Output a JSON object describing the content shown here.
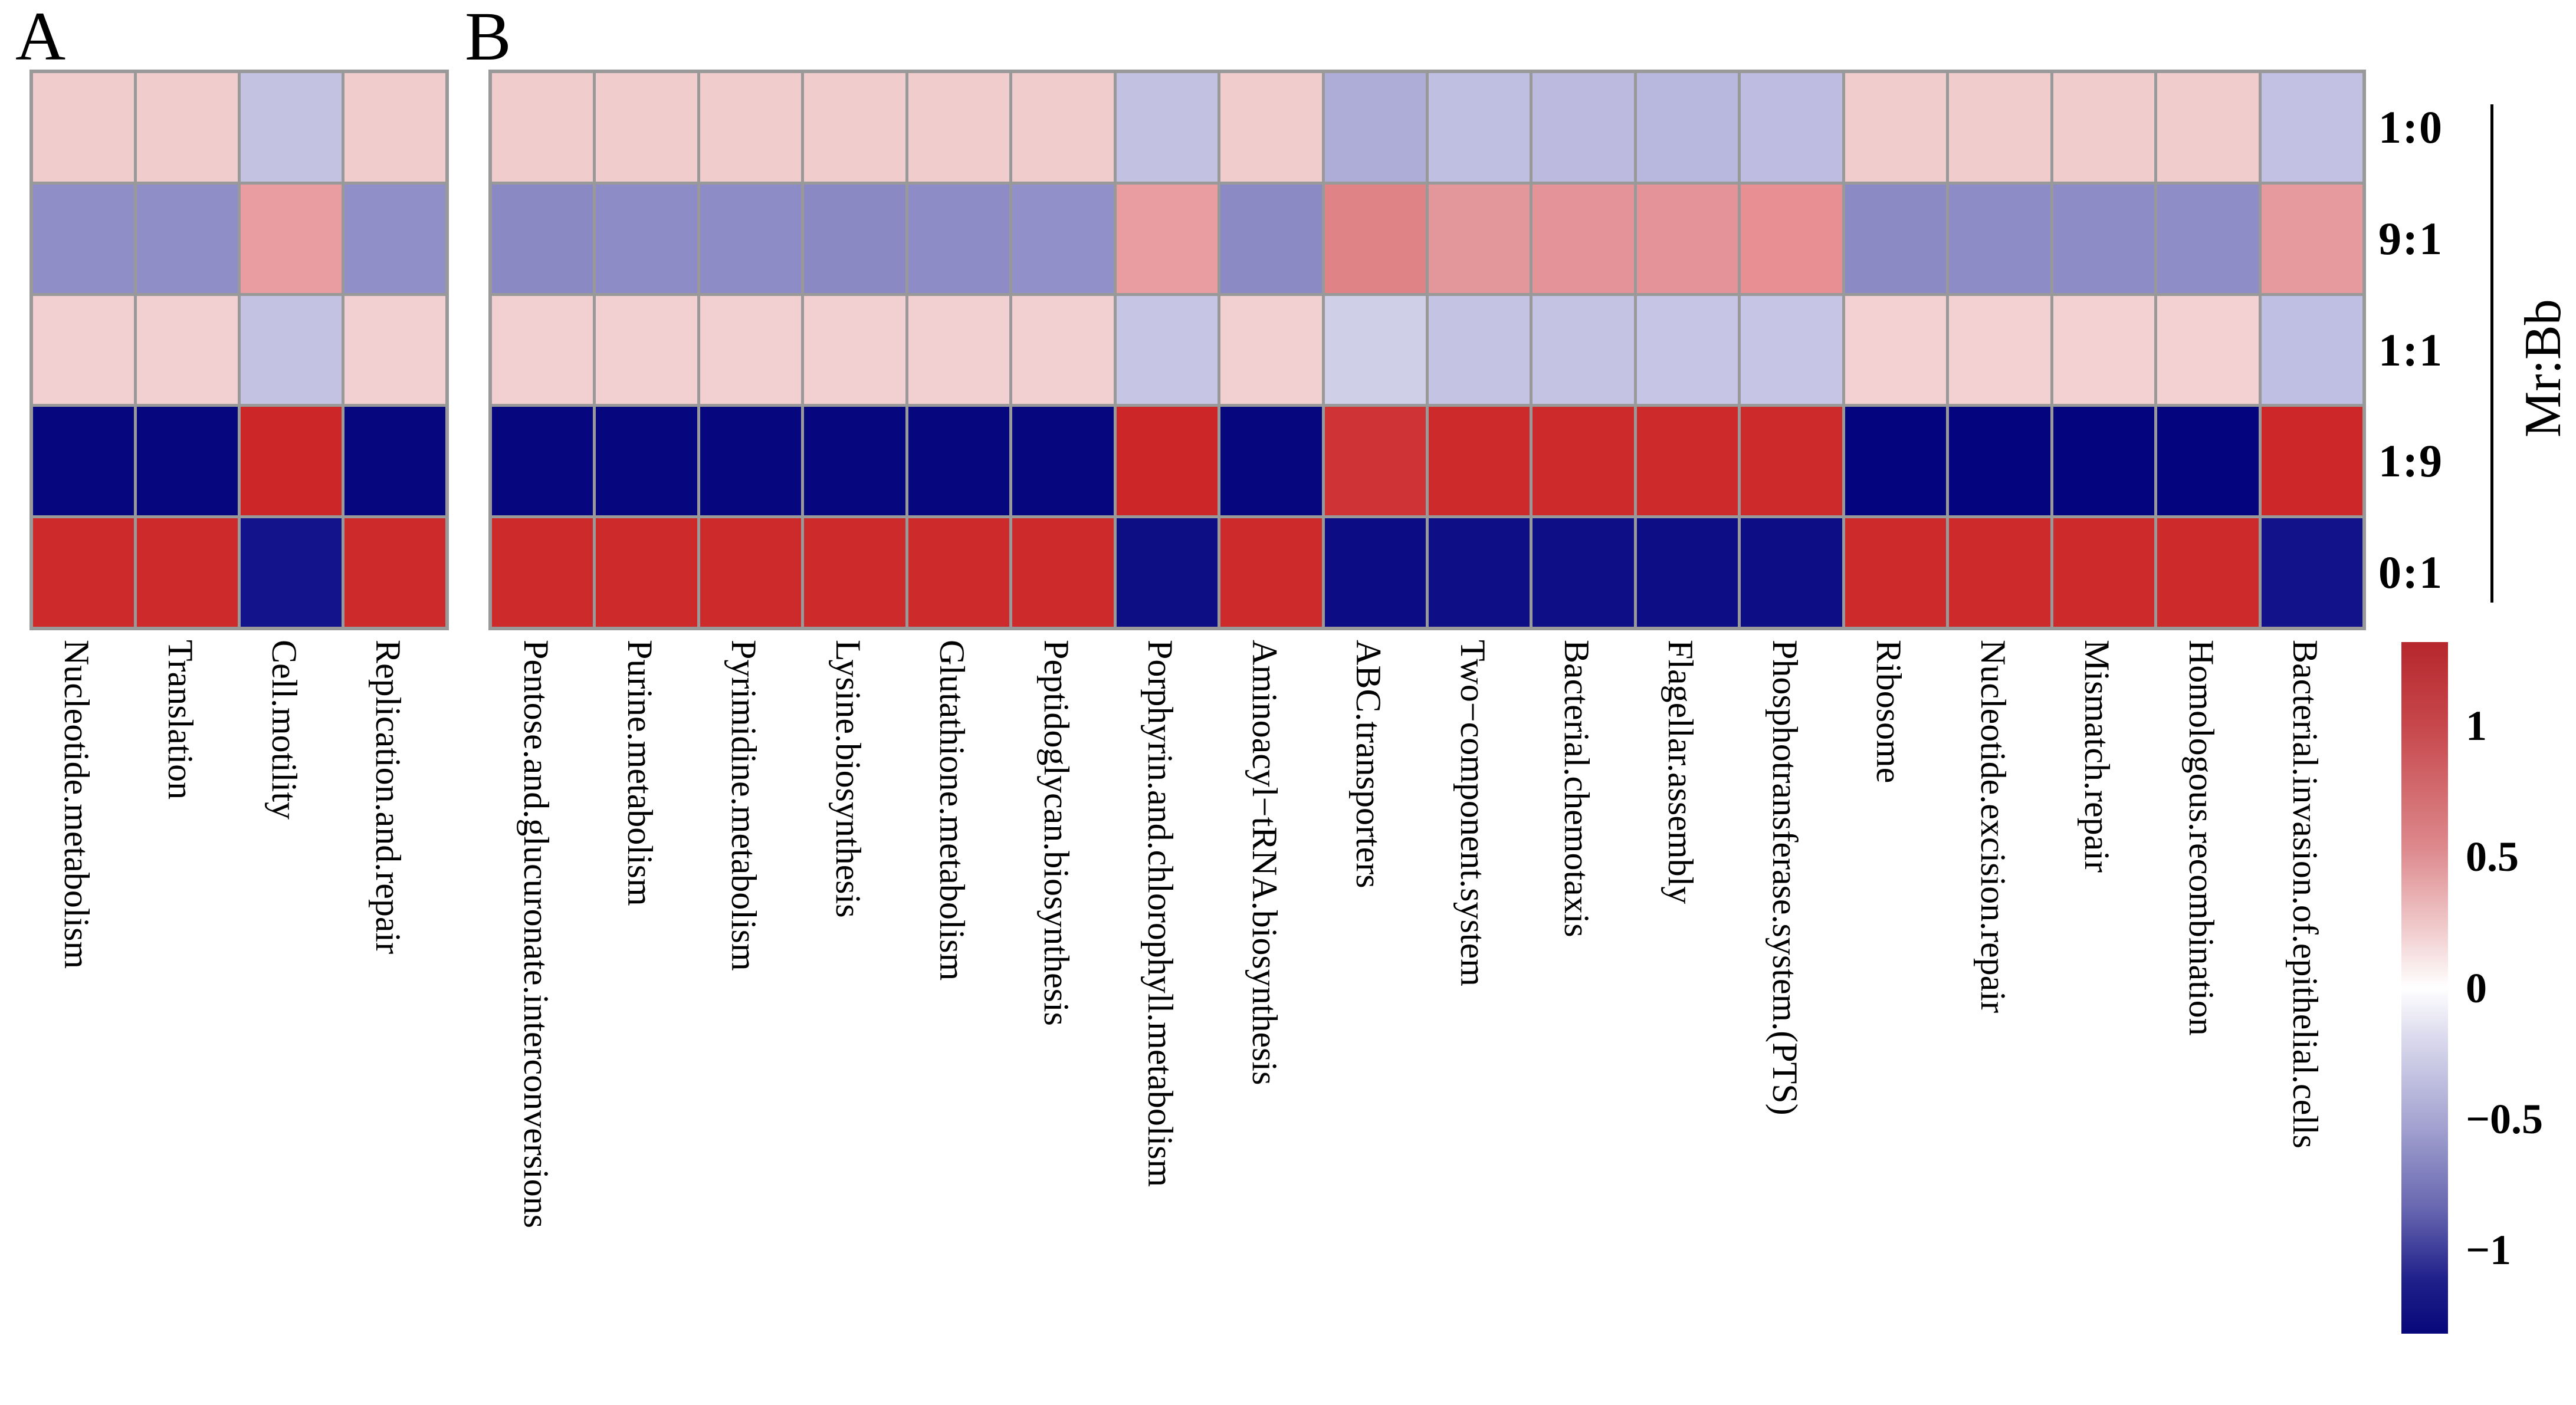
{
  "row_axis": {
    "title": "Mr:Bb",
    "labels": [
      "1:0",
      "9:1",
      "1:1",
      "1:9",
      "0:1"
    ]
  },
  "colorbar": {
    "ticks": [
      "1",
      "0.5",
      "0",
      "−0.5",
      "−1"
    ],
    "tick_values": [
      1,
      0.5,
      0,
      -0.5,
      -1
    ],
    "value_range": [
      -1.32,
      1.32
    ],
    "gradient_stops": [
      "#b6272c 0%",
      "#c6474b 12%",
      "#dd8a8e 30%",
      "#f3d4d5 43%",
      "#ffffff 50%",
      "#dcdbee 57%",
      "#a3a2d0 70%",
      "#6766b0 82%",
      "#21218b 92%",
      "#07077a 100%"
    ],
    "positive_color": "#b6272c",
    "zero_color": "#ffffff",
    "negative_color": "#07077a"
  },
  "grid_line_color": "#999999",
  "chart_data": [
    {
      "panel": "A",
      "type": "heatmap",
      "legend_position": "right",
      "columns": [
        "Nucleotide.metabolism",
        "Translation",
        "Cell.motility",
        "Replication.and.repair"
      ],
      "rows": [
        "1:0",
        "9:1",
        "1:1",
        "1:9",
        "0:1"
      ],
      "values": [
        [
          0.35,
          0.35,
          -0.38,
          0.35
        ],
        [
          -0.68,
          -0.68,
          0.6,
          -0.67
        ],
        [
          0.33,
          0.33,
          -0.38,
          0.33
        ],
        [
          -1.31,
          -1.31,
          1.3,
          -1.31
        ],
        [
          1.28,
          1.28,
          -1.23,
          1.28
        ]
      ],
      "cell_colors": [
        [
          "#f1cccd",
          "#f1cccd",
          "#c3c2e1",
          "#f1cccd"
        ],
        [
          "#8f8ec7",
          "#8f8ec7",
          "#e99da0",
          "#908fc8"
        ],
        [
          "#f2cfd0",
          "#f2cfd0",
          "#c3c2e3",
          "#f2cfd0"
        ],
        [
          "#06067f",
          "#06067f",
          "#cc2628",
          "#06067f"
        ],
        [
          "#cc2a2b",
          "#cc2a2b",
          "#13138c",
          "#cc2a2b"
        ]
      ]
    },
    {
      "panel": "B",
      "type": "heatmap",
      "legend_position": "right",
      "columns": [
        "Pentose.and.glucuronate.interconversions",
        "Purine.metabolism",
        "Pyrimidine.metabolism",
        "Lysine.biosynthesis",
        "Glutathione.metabolism",
        "Peptidoglycan.biosynthesis",
        "Porphyrin.and.chlorophyll.metabolism",
        "Aminoacyl−tRNA.biosynthesis",
        "ABC.transporters",
        "Two−component.system",
        "Bacterial.chemotaxis",
        "Flagellar.assembly",
        "Phosphotransferase.system.(PTS)",
        "Ribosome",
        "Nucleotide.excision.repair",
        "Mismatch.repair",
        "Homologous.recombination",
        "Bacterial.invasion.of.epithelial.cells"
      ],
      "rows": [
        "1:0",
        "9:1",
        "1:1",
        "1:9",
        "0:1"
      ],
      "values": [
        [
          0.35,
          0.35,
          0.35,
          0.35,
          0.35,
          0.35,
          -0.38,
          0.35,
          -0.52,
          -0.4,
          -0.42,
          -0.45,
          -0.41,
          0.35,
          0.35,
          0.35,
          0.35,
          -0.38
        ],
        [
          -0.72,
          -0.7,
          -0.7,
          -0.72,
          -0.7,
          -0.66,
          0.6,
          -0.71,
          0.78,
          0.64,
          0.66,
          0.66,
          0.7,
          -0.71,
          -0.7,
          -0.7,
          -0.69,
          0.62
        ],
        [
          0.33,
          0.33,
          0.33,
          0.33,
          0.33,
          0.33,
          -0.35,
          0.33,
          -0.28,
          -0.37,
          -0.37,
          -0.35,
          -0.35,
          0.3,
          0.3,
          0.3,
          0.3,
          -0.4
        ],
        [
          -1.31,
          -1.31,
          -1.31,
          -1.31,
          -1.31,
          -1.31,
          1.3,
          -1.31,
          1.2,
          1.27,
          1.27,
          1.27,
          1.27,
          -1.32,
          -1.32,
          -1.32,
          -1.32,
          1.28
        ],
        [
          1.28,
          1.28,
          1.28,
          1.28,
          1.28,
          1.28,
          -1.27,
          1.28,
          -1.27,
          -1.26,
          -1.26,
          -1.27,
          -1.27,
          1.28,
          1.28,
          1.28,
          1.28,
          -1.24
        ]
      ],
      "cell_colors": [
        [
          "#f1cccd",
          "#f1cccd",
          "#f1cccd",
          "#f1cccd",
          "#f1cccd",
          "#f1cccd",
          "#c2c1e1",
          "#f1cccd",
          "#aeadd8",
          "#bfbfe2",
          "#bcbbdf",
          "#b8b7dd",
          "#bebde1",
          "#f1cccd",
          "#f1cccd",
          "#f1cccd",
          "#f1cccd",
          "#c2c1e3"
        ],
        [
          "#8a89c4",
          "#8d8cc6",
          "#8d8cc6",
          "#8a89c4",
          "#8d8cc6",
          "#9190c8",
          "#e99da0",
          "#8b8ac5",
          "#e08387",
          "#e4979b",
          "#e49499",
          "#e49499",
          "#e78f93",
          "#8b8ac5",
          "#8d8cc6",
          "#8d8cc6",
          "#8e8dc7",
          "#e79a9e"
        ],
        [
          "#f2cfd0",
          "#f2cfd0",
          "#f2cfd0",
          "#f2cfd0",
          "#f2cfd0",
          "#f2cfd0",
          "#c6c5e4",
          "#f2cfd0",
          "#cfcfe8",
          "#c4c3e4",
          "#c4c3e4",
          "#c6c5e6",
          "#c6c5e6",
          "#f3d1d3",
          "#f3d1d3",
          "#f3d1d3",
          "#f3d1d3",
          "#bfbfe3"
        ],
        [
          "#06067f",
          "#06067f",
          "#06067f",
          "#06067f",
          "#06067f",
          "#06067f",
          "#cc2628",
          "#06067f",
          "#d03336",
          "#cd2a2c",
          "#cd2a2c",
          "#cd2a2c",
          "#cd2a2c",
          "#04047e",
          "#04047e",
          "#04047e",
          "#04047e",
          "#cd2729"
        ],
        [
          "#cc2a2b",
          "#cc2a2b",
          "#cc2a2b",
          "#cc2a2b",
          "#cc2a2b",
          "#cc2a2b",
          "#0d0d84",
          "#cc2a2b",
          "#0c0c84",
          "#0e0e87",
          "#0e0e87",
          "#0d0d85",
          "#0d0d85",
          "#cc2a2b",
          "#cc2a2b",
          "#cc2a2b",
          "#cc2a2b",
          "#12128a"
        ]
      ]
    }
  ]
}
